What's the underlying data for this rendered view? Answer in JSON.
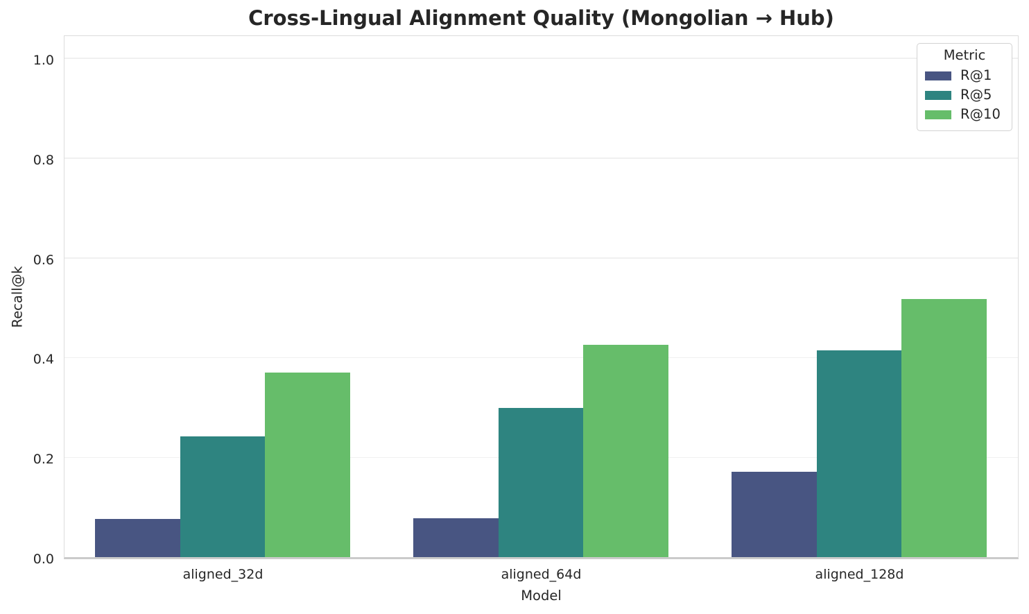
{
  "chart_data": {
    "type": "bar",
    "title": "Cross-Lingual Alignment Quality (Mongolian → Hub)",
    "xlabel": "Model",
    "ylabel": "Recall@k",
    "categories": [
      "aligned_32d",
      "aligned_64d",
      "aligned_128d"
    ],
    "series": [
      {
        "name": "R@1",
        "color": "#485582",
        "values": [
          0.077,
          0.078,
          0.171
        ]
      },
      {
        "name": "R@5",
        "color": "#2e8480",
        "values": [
          0.242,
          0.299,
          0.414
        ]
      },
      {
        "name": "R@10",
        "color": "#66bd6a",
        "values": [
          0.37,
          0.425,
          0.518
        ]
      }
    ],
    "legend_title": "Metric",
    "legend_position": "upper right",
    "ylim": [
      0,
      1.05
    ],
    "yticks": [
      0.0,
      0.2,
      0.4,
      0.6,
      0.8,
      1.0
    ],
    "ytick_labels": [
      "0.0",
      "0.2",
      "0.4",
      "0.6",
      "0.8",
      "1.0"
    ],
    "grid": true,
    "bar_group_fraction": 0.8
  }
}
